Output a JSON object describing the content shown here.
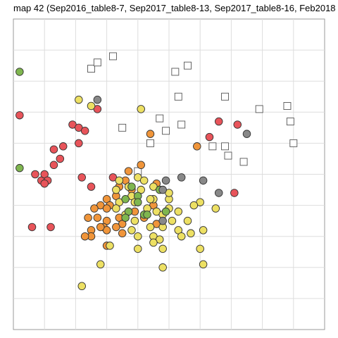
{
  "chart_data": {
    "type": "scatter",
    "title": "map 42 (Sep2016_table8-7, Sep2017_table8-13, Sep2017_table8-16, Feb2018",
    "xlabel": "",
    "ylabel": "",
    "grid": true,
    "axis_tick_labels": false,
    "xlim": [
      0,
      10
    ],
    "ylim": [
      0,
      10
    ],
    "legend": "none",
    "series": [
      {
        "marker": "square",
        "color": "#ffffff",
        "stroke": "#555555",
        "points": [
          [
            2.5,
            8.4
          ],
          [
            2.7,
            8.6
          ],
          [
            3.2,
            8.8
          ],
          [
            5.2,
            8.3
          ],
          [
            5.6,
            8.5
          ],
          [
            5.3,
            7.5
          ],
          [
            6.8,
            7.5
          ],
          [
            7.9,
            7.1
          ],
          [
            8.8,
            7.2
          ],
          [
            8.9,
            6.7
          ],
          [
            4.7,
            6.8
          ],
          [
            4.9,
            6.4
          ],
          [
            5.4,
            6.6
          ],
          [
            3.5,
            6.5
          ],
          [
            4.4,
            6.0
          ],
          [
            4.0,
            5.1
          ],
          [
            6.4,
            5.9
          ],
          [
            6.8,
            5.9
          ],
          [
            6.9,
            5.6
          ],
          [
            7.4,
            5.4
          ],
          [
            9.0,
            6.0
          ]
        ]
      },
      {
        "marker": "circle",
        "color": "#e8545a",
        "stroke": "#333333",
        "points": [
          [
            0.2,
            6.9
          ],
          [
            1.9,
            6.6
          ],
          [
            2.1,
            6.5
          ],
          [
            2.7,
            7.1
          ],
          [
            2.1,
            6.0
          ],
          [
            2.3,
            6.4
          ],
          [
            1.3,
            5.8
          ],
          [
            1.6,
            5.9
          ],
          [
            1.5,
            5.5
          ],
          [
            1.3,
            5.3
          ],
          [
            0.7,
            5.0
          ],
          [
            0.9,
            4.8
          ],
          [
            1.0,
            5.0
          ],
          [
            1.1,
            4.8
          ],
          [
            1.0,
            4.7
          ],
          [
            2.2,
            4.9
          ],
          [
            2.5,
            4.6
          ],
          [
            0.6,
            3.3
          ],
          [
            1.2,
            3.3
          ],
          [
            3.2,
            4.9
          ],
          [
            6.6,
            6.7
          ],
          [
            7.2,
            6.6
          ],
          [
            6.3,
            6.2
          ],
          [
            7.1,
            4.4
          ]
        ]
      },
      {
        "marker": "circle",
        "color": "#f0953a",
        "stroke": "#333333",
        "points": [
          [
            4.1,
            5.3
          ],
          [
            4.6,
            4.7
          ],
          [
            3.7,
            5.1
          ],
          [
            5.9,
            5.9
          ],
          [
            4.4,
            6.3
          ],
          [
            3.6,
            4.8
          ],
          [
            3.8,
            4.5
          ],
          [
            3.4,
            4.6
          ],
          [
            3.3,
            4.3
          ],
          [
            3.0,
            4.2
          ],
          [
            3.1,
            4.0
          ],
          [
            2.8,
            4.0
          ],
          [
            3.0,
            3.9
          ],
          [
            2.6,
            3.9
          ],
          [
            2.7,
            3.6
          ],
          [
            3.0,
            3.5
          ],
          [
            2.9,
            3.3
          ],
          [
            3.4,
            3.6
          ],
          [
            3.5,
            3.4
          ],
          [
            3.3,
            3.3
          ],
          [
            3.0,
            3.2
          ],
          [
            2.8,
            3.3
          ],
          [
            2.4,
            3.6
          ],
          [
            2.5,
            3.2
          ],
          [
            2.5,
            3.0
          ],
          [
            2.3,
            3.0
          ],
          [
            3.5,
            3.1
          ],
          [
            3.0,
            2.7
          ],
          [
            4.5,
            4.0
          ],
          [
            4.6,
            3.4
          ],
          [
            4.2,
            3.6
          ],
          [
            3.9,
            3.8
          ]
        ]
      },
      {
        "marker": "circle",
        "color": "#ede063",
        "stroke": "#333333",
        "points": [
          [
            2.1,
            7.4
          ],
          [
            2.5,
            7.2
          ],
          [
            4.1,
            7.1
          ],
          [
            3.4,
            4.8
          ],
          [
            3.7,
            4.6
          ],
          [
            4.0,
            4.9
          ],
          [
            4.2,
            4.8
          ],
          [
            3.8,
            4.3
          ],
          [
            3.9,
            4.1
          ],
          [
            4.1,
            4.5
          ],
          [
            4.5,
            4.6
          ],
          [
            4.5,
            4.2
          ],
          [
            3.4,
            4.1
          ],
          [
            3.3,
            3.9
          ],
          [
            3.6,
            3.7
          ],
          [
            3.9,
            3.5
          ],
          [
            3.8,
            3.2
          ],
          [
            4.0,
            3.0
          ],
          [
            4.4,
            3.3
          ],
          [
            4.5,
            3.0
          ],
          [
            4.3,
            3.9
          ],
          [
            4.6,
            3.8
          ],
          [
            4.8,
            3.7
          ],
          [
            5.0,
            3.9
          ],
          [
            4.8,
            3.3
          ],
          [
            5.1,
            3.5
          ],
          [
            5.3,
            3.2
          ],
          [
            5.4,
            3.0
          ],
          [
            5.3,
            3.8
          ],
          [
            5.6,
            3.5
          ],
          [
            5.7,
            3.1
          ],
          [
            6.0,
            4.1
          ],
          [
            6.1,
            3.2
          ],
          [
            6.5,
            3.9
          ],
          [
            4.7,
            2.9
          ],
          [
            4.8,
            2.6
          ],
          [
            4.0,
            2.6
          ],
          [
            3.1,
            2.7
          ],
          [
            4.5,
            2.8
          ],
          [
            6.0,
            2.6
          ],
          [
            2.8,
            2.1
          ],
          [
            4.8,
            2.0
          ],
          [
            6.1,
            2.1
          ],
          [
            5.0,
            4.2
          ],
          [
            5.8,
            4.0
          ],
          [
            3.3,
            4.5
          ],
          [
            4.4,
            4.2
          ],
          [
            5.0,
            4.4
          ],
          [
            2.2,
            1.4
          ]
        ]
      },
      {
        "marker": "circle",
        "color": "#7fb64f",
        "stroke": "#333333",
        "points": [
          [
            0.2,
            8.3
          ],
          [
            0.2,
            5.2
          ],
          [
            4.0,
            4.3
          ],
          [
            3.6,
            4.2
          ],
          [
            3.7,
            3.8
          ],
          [
            4.2,
            3.7
          ],
          [
            4.7,
            4.5
          ],
          [
            3.6,
            3.6
          ],
          [
            4.9,
            3.8
          ],
          [
            3.8,
            4.6
          ],
          [
            4.3,
            3.7
          ],
          [
            4.0,
            4.1
          ]
        ]
      },
      {
        "marker": "circle",
        "color": "#888888",
        "stroke": "#333333",
        "points": [
          [
            2.7,
            7.4
          ],
          [
            4.9,
            4.8
          ],
          [
            5.4,
            4.9
          ],
          [
            6.1,
            4.8
          ],
          [
            6.6,
            4.4
          ],
          [
            7.5,
            6.3
          ],
          [
            4.8,
            3.5
          ],
          [
            4.8,
            4.5
          ]
        ]
      }
    ]
  }
}
